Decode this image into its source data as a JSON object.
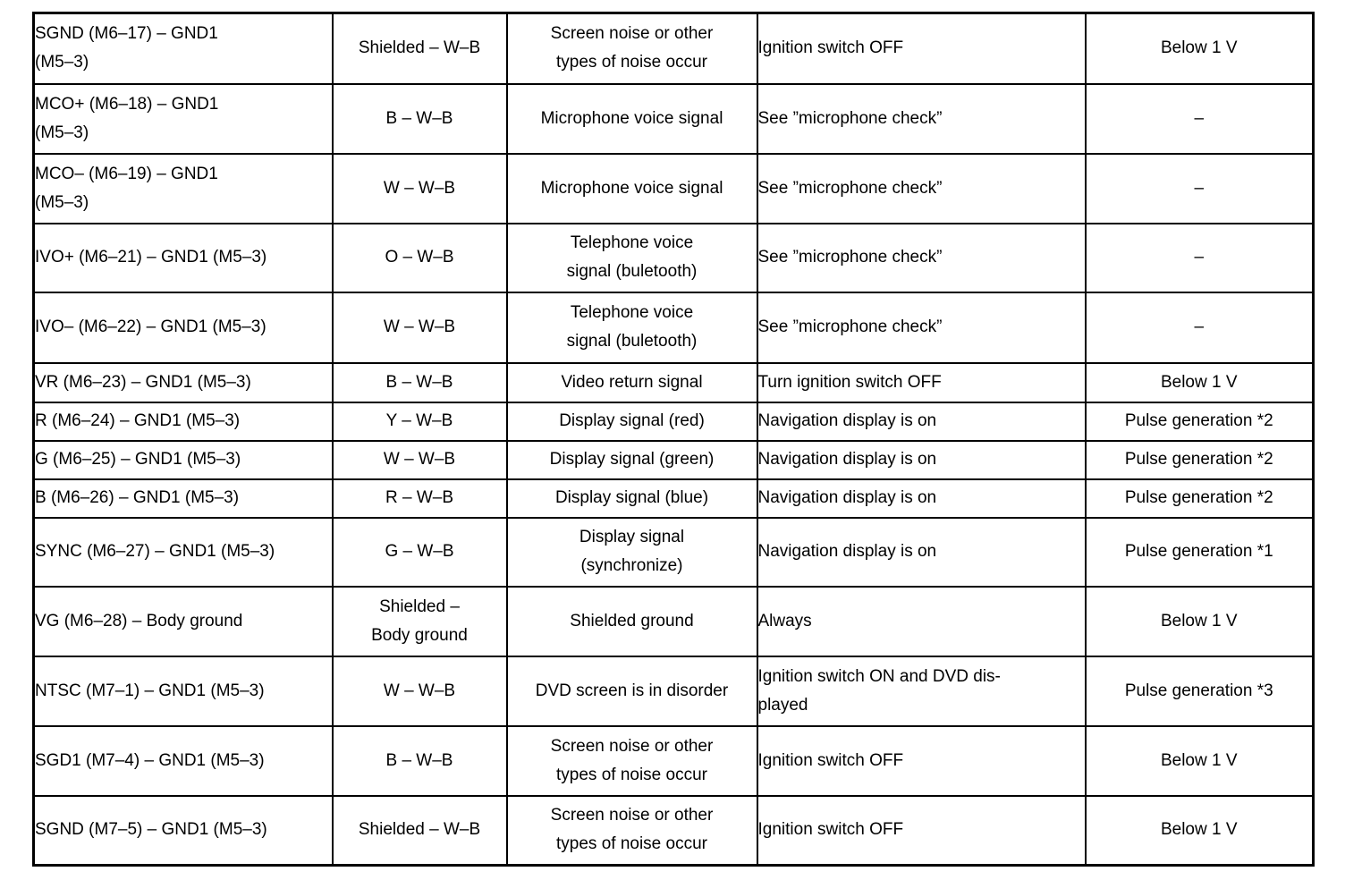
{
  "colors": {
    "border": "#000000",
    "background": "#ffffff",
    "text": "#000000"
  },
  "table": {
    "rows": [
      {
        "terminals": "SGND (M6–17) – GND1\n(M5–3)",
        "wire_color": "Shielded – W–B",
        "item": "Screen noise or other\ntypes of noise occur",
        "condition": "Ignition switch OFF",
        "specified_value": "Below 1 V"
      },
      {
        "terminals": "MCO+ (M6–18) – GND1\n(M5–3)",
        "wire_color": "B – W–B",
        "item": "Microphone voice signal",
        "condition": "See ”microphone check”",
        "specified_value": "–"
      },
      {
        "terminals": "MCO– (M6–19) – GND1\n(M5–3)",
        "wire_color": "W – W–B",
        "item": "Microphone voice signal",
        "condition": "See ”microphone check”",
        "specified_value": "–"
      },
      {
        "terminals": "IVO+ (M6–21) – GND1 (M5–3)",
        "wire_color": "O – W–B",
        "item": "Telephone voice\nsignal (buletooth)",
        "condition": "See ”microphone check”",
        "specified_value": "–"
      },
      {
        "terminals": "IVO– (M6–22) – GND1 (M5–3)",
        "wire_color": "W – W–B",
        "item": "Telephone voice\nsignal (buletooth)",
        "condition": "See ”microphone check”",
        "specified_value": "–"
      },
      {
        "terminals": "VR (M6–23) – GND1 (M5–3)",
        "wire_color": "B – W–B",
        "item": "Video return signal",
        "condition": "Turn ignition switch OFF",
        "specified_value": "Below 1 V"
      },
      {
        "terminals": "R (M6–24) – GND1 (M5–3)",
        "wire_color": "Y – W–B",
        "item": "Display signal (red)",
        "condition": "Navigation display is on",
        "specified_value": "Pulse generation *2"
      },
      {
        "terminals": "G (M6–25) – GND1 (M5–3)",
        "wire_color": "W – W–B",
        "item": "Display signal (green)",
        "condition": "Navigation display is on",
        "specified_value": "Pulse generation *2"
      },
      {
        "terminals": "B (M6–26) – GND1 (M5–3)",
        "wire_color": "R – W–B",
        "item": "Display signal (blue)",
        "condition": "Navigation display is on",
        "specified_value": "Pulse generation *2"
      },
      {
        "terminals": "SYNC (M6–27) – GND1 (M5–3)",
        "wire_color": "G – W–B",
        "item": "Display signal\n(synchronize)",
        "condition": "Navigation display is on",
        "specified_value": "Pulse generation *1"
      },
      {
        "terminals": "VG (M6–28) – Body ground",
        "wire_color": "Shielded –\nBody ground",
        "item": "Shielded ground",
        "condition": "Always",
        "specified_value": "Below 1 V"
      },
      {
        "terminals": "NTSC (M7–1) – GND1 (M5–3)",
        "wire_color": "W – W–B",
        "item": "DVD screen is in disorder",
        "condition": "Ignition switch ON and DVD dis-\nplayed",
        "specified_value": "Pulse generation *3"
      },
      {
        "terminals": "SGD1 (M7–4) – GND1 (M5–3)",
        "wire_color": "B – W–B",
        "item": "Screen noise or other\ntypes of noise occur",
        "condition": "Ignition switch OFF",
        "specified_value": "Below 1 V"
      },
      {
        "terminals": "SGND (M7–5) – GND1 (M5–3)",
        "wire_color": "Shielded – W–B",
        "item": "Screen noise or other\ntypes of noise occur",
        "condition": "Ignition switch OFF",
        "specified_value": "Below 1 V"
      }
    ]
  }
}
